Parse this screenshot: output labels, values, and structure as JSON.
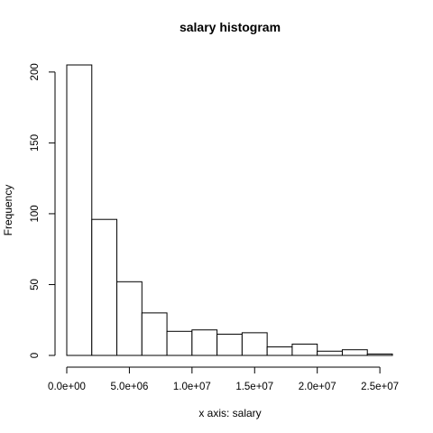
{
  "chart_data": {
    "type": "bar",
    "title": "salary histogram",
    "xlabel": "x axis: salary",
    "ylabel": "Frequency",
    "bin_edges": [
      0,
      2000000,
      4000000,
      6000000,
      8000000,
      10000000,
      12000000,
      14000000,
      16000000,
      18000000,
      20000000,
      22000000,
      24000000,
      26000000
    ],
    "values": [
      205,
      96,
      52,
      30,
      17,
      18,
      15,
      16,
      6,
      8,
      3,
      4,
      1
    ],
    "xlim": [
      0,
      26000000
    ],
    "ylim": [
      0,
      205
    ],
    "x_ticks": [
      0,
      5000000,
      10000000,
      15000000,
      20000000,
      25000000
    ],
    "x_tick_labels": [
      "0.0e+00",
      "5.0e+06",
      "1.0e+07",
      "1.5e+07",
      "2.0e+07",
      "2.5e+07"
    ],
    "y_ticks": [
      0,
      50,
      100,
      150,
      200
    ],
    "y_tick_labels": [
      "0",
      "50",
      "100",
      "150",
      "200"
    ],
    "grid": false,
    "legend": "none"
  }
}
